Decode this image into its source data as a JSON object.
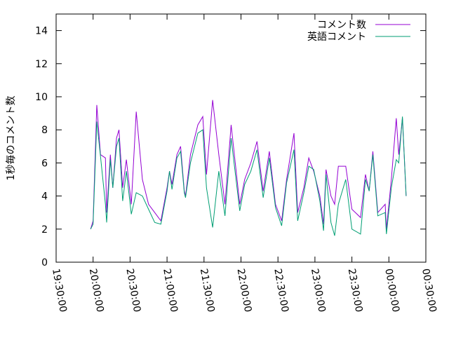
{
  "chart_data": {
    "type": "line",
    "ylabel": "1秒毎のコメント数",
    "x": [
      "19:58:00",
      "20:00:00",
      "20:03:00",
      "20:06:00",
      "20:10:00",
      "20:11:00",
      "20:14:00",
      "20:16:00",
      "20:19:00",
      "20:21:00",
      "20:24:00",
      "20:27:00",
      "20:31:00",
      "20:35:00",
      "20:40:00",
      "20:45:00",
      "20:50:00",
      "20:55:00",
      "21:00:00",
      "21:02:00",
      "21:04:00",
      "21:08:00",
      "21:11:00",
      "21:14:00",
      "21:15:00",
      "21:19:00",
      "21:25:00",
      "21:29:00",
      "21:32:00",
      "21:37:00",
      "21:42:00",
      "21:47:00",
      "21:52:00",
      "21:59:00",
      "22:03:00",
      "22:08:00",
      "22:13:00",
      "22:18:00",
      "22:23:00",
      "22:28:00",
      "22:33:00",
      "22:37:00",
      "22:43:00",
      "22:46:00",
      "22:51:00",
      "22:55:00",
      "22:59:00",
      "23:04:00",
      "23:07:00",
      "23:09:00",
      "23:13:00",
      "23:16:00",
      "23:19:00",
      "23:25:00",
      "23:30:00",
      "23:37:00",
      "23:41:00",
      "23:44:00",
      "23:47:00",
      "23:51:00",
      "23:57:00",
      "23:58:00",
      "00:02:00",
      "00:06:00",
      "00:08:00",
      "00:11:00",
      "00:14:00"
    ],
    "series": [
      {
        "name": "コメント数",
        "color": "#9400d3",
        "values": [
          2.0,
          2.5,
          9.5,
          6.5,
          6.3,
          3.0,
          6.5,
          4.5,
          7.5,
          8.0,
          4.5,
          6.2,
          3.5,
          9.1,
          5.0,
          3.5,
          3.0,
          2.5,
          4.5,
          5.5,
          4.7,
          6.5,
          7.0,
          4.3,
          4.0,
          6.5,
          8.3,
          8.8,
          5.3,
          9.8,
          6.5,
          3.5,
          8.3,
          3.5,
          5.0,
          6.0,
          7.3,
          4.3,
          6.7,
          3.5,
          2.5,
          5.0,
          7.8,
          3.0,
          4.5,
          6.3,
          5.5,
          4.0,
          2.3,
          5.6,
          4.0,
          3.5,
          5.8,
          5.8,
          3.2,
          2.7,
          5.3,
          4.3,
          6.7,
          3.0,
          3.5,
          2.0,
          5.0,
          8.7,
          6.5,
          8.7,
          4.0
        ]
      },
      {
        "name": "英語コメント",
        "color": "#009e73",
        "values": [
          2.0,
          2.3,
          8.5,
          6.4,
          3.5,
          2.4,
          6.2,
          4.5,
          7.0,
          7.5,
          3.7,
          5.5,
          2.9,
          4.2,
          4.0,
          3.2,
          2.4,
          2.3,
          4.3,
          5.5,
          4.4,
          6.3,
          6.7,
          4.2,
          3.9,
          6.0,
          7.8,
          8.0,
          4.5,
          2.1,
          5.5,
          2.8,
          7.5,
          3.1,
          4.7,
          5.5,
          6.8,
          3.9,
          6.3,
          3.3,
          2.2,
          4.8,
          6.8,
          2.5,
          4.2,
          5.8,
          5.6,
          3.7,
          1.9,
          5.3,
          2.4,
          1.6,
          3.5,
          5.0,
          2.0,
          1.7,
          5.0,
          4.3,
          6.5,
          2.8,
          3.0,
          1.7,
          4.5,
          6.2,
          6.0,
          8.8,
          4.0
        ]
      }
    ],
    "xlim": [
      "19:30:00",
      "00:30:00"
    ],
    "xticks": [
      "19:30:00",
      "20:00:00",
      "20:30:00",
      "21:00:00",
      "21:30:00",
      "22:00:00",
      "22:30:00",
      "23:00:00",
      "23:30:00",
      "00:00:00",
      "00:30:00"
    ],
    "ylim": [
      0,
      15
    ],
    "yticks": [
      0,
      2,
      4,
      6,
      8,
      10,
      12,
      14
    ],
    "legend": "top-right"
  }
}
